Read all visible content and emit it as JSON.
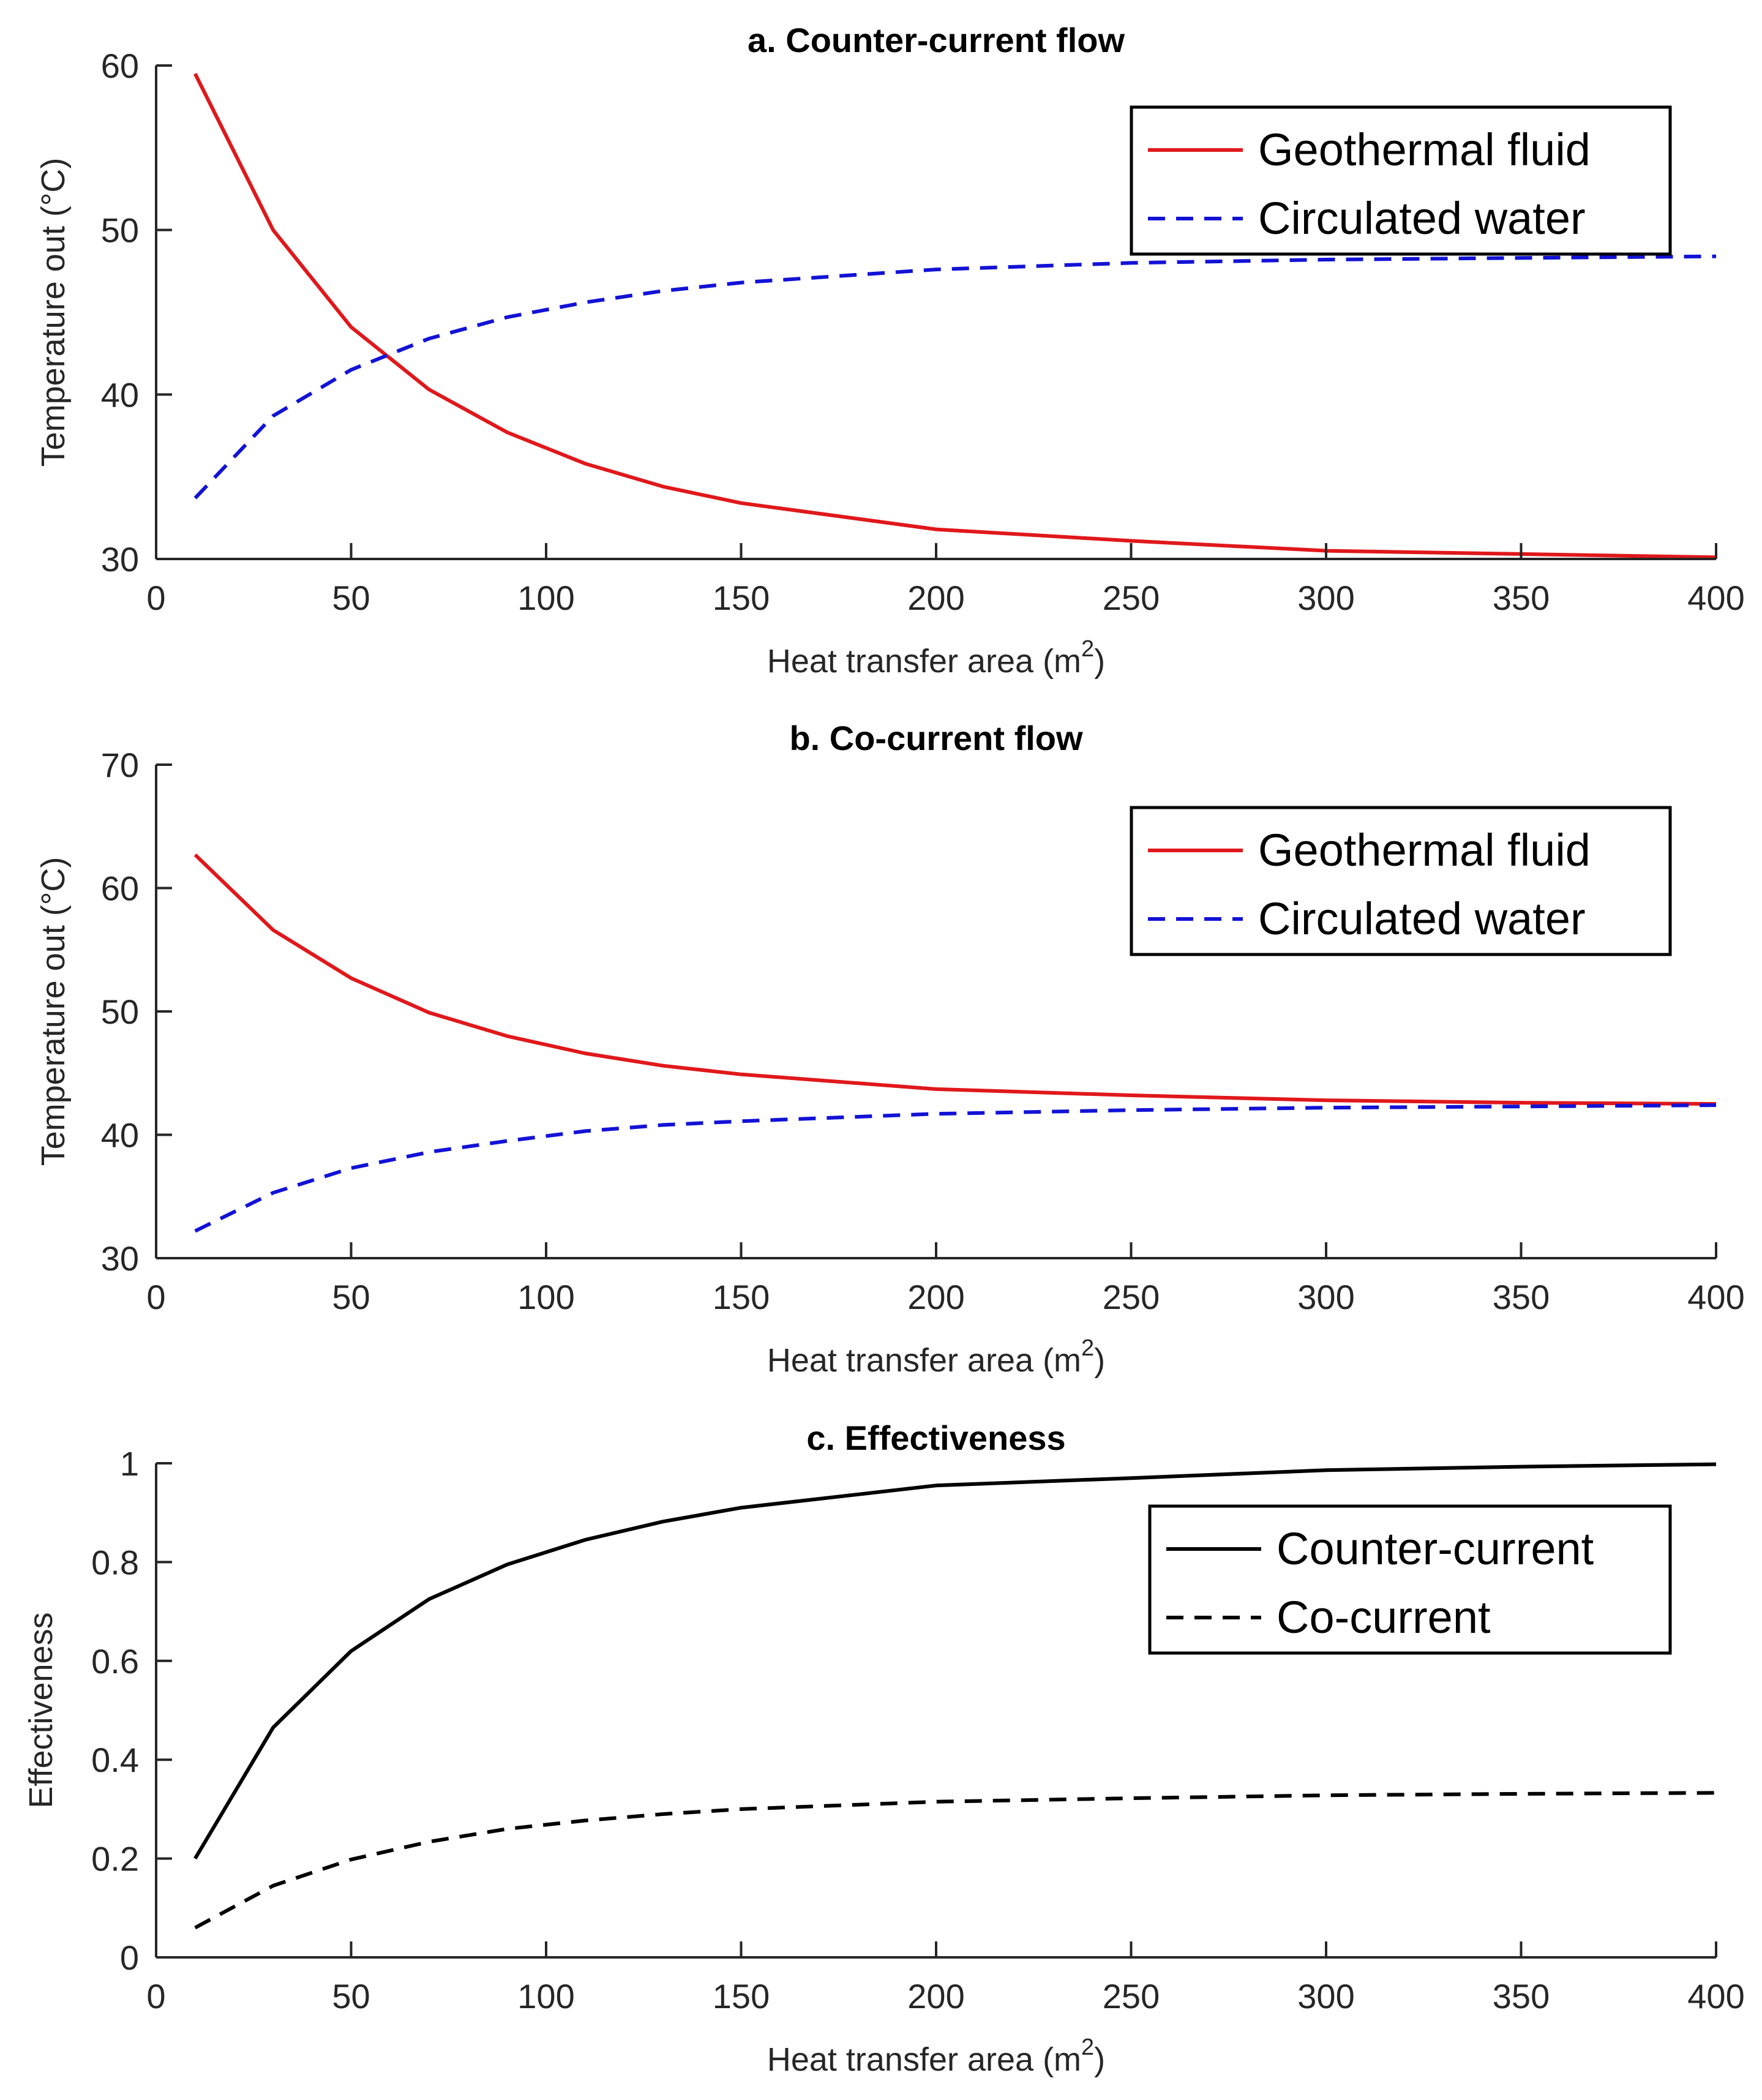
{
  "chart_data": [
    {
      "type": "line",
      "title": "a. Counter-current flow",
      "xlabel": "Heat transfer area (m",
      "xlabel_superscript": "2",
      "xlabel_suffix": ")",
      "ylabel": "Temperature out (°C)",
      "xlim": [
        0,
        400
      ],
      "ylim": [
        30,
        60
      ],
      "xticks": [
        0,
        50,
        100,
        150,
        200,
        250,
        300,
        350,
        400
      ],
      "yticks": [
        30,
        40,
        50,
        60
      ],
      "legend_position": "top-right",
      "series": [
        {
          "name": "Geothermal fluid",
          "color": "#e0181b",
          "style": "solid",
          "x": [
            10,
            30,
            50,
            70,
            90,
            110,
            130,
            150,
            200,
            250,
            300,
            350,
            400
          ],
          "y": [
            59.5,
            50.0,
            44.1,
            40.3,
            37.7,
            35.8,
            34.4,
            33.4,
            31.8,
            31.1,
            30.5,
            30.3,
            30.1
          ]
        },
        {
          "name": "Circulated water",
          "color": "#1212d6",
          "style": "dashed",
          "x": [
            10,
            30,
            50,
            70,
            90,
            110,
            130,
            150,
            200,
            250,
            300,
            350,
            400
          ],
          "y": [
            33.7,
            38.7,
            41.5,
            43.4,
            44.7,
            45.6,
            46.3,
            46.8,
            47.6,
            48.0,
            48.2,
            48.3,
            48.4
          ]
        }
      ]
    },
    {
      "type": "line",
      "title": "b. Co-current flow",
      "xlabel": "Heat transfer area (m",
      "xlabel_superscript": "2",
      "xlabel_suffix": ")",
      "ylabel": "Temperature out (°C)",
      "xlim": [
        0,
        400
      ],
      "ylim": [
        30,
        70
      ],
      "xticks": [
        0,
        50,
        100,
        150,
        200,
        250,
        300,
        350,
        400
      ],
      "yticks": [
        30,
        40,
        50,
        60,
        70
      ],
      "legend_position": "top-right",
      "series": [
        {
          "name": "Geothermal fluid",
          "color": "#e0181b",
          "style": "solid",
          "x": [
            10,
            30,
            50,
            70,
            90,
            110,
            130,
            150,
            200,
            250,
            300,
            350,
            400
          ],
          "y": [
            62.7,
            56.6,
            52.7,
            49.9,
            48.0,
            46.6,
            45.6,
            44.9,
            43.7,
            43.2,
            42.8,
            42.6,
            42.5
          ]
        },
        {
          "name": "Circulated water",
          "color": "#1212d6",
          "style": "dashed",
          "x": [
            10,
            30,
            50,
            70,
            90,
            110,
            130,
            150,
            200,
            250,
            300,
            350,
            400
          ],
          "y": [
            32.2,
            35.3,
            37.3,
            38.6,
            39.5,
            40.3,
            40.8,
            41.1,
            41.7,
            42.0,
            42.2,
            42.3,
            42.4
          ]
        }
      ]
    },
    {
      "type": "line",
      "title": "c. Effectiveness",
      "xlabel": "Heat transfer area (m",
      "xlabel_superscript": "2",
      "xlabel_suffix": ")",
      "ylabel": "Effectiveness",
      "xlim": [
        0,
        400
      ],
      "ylim": [
        0,
        1
      ],
      "xticks": [
        0,
        50,
        100,
        150,
        200,
        250,
        300,
        350,
        400
      ],
      "yticks": [
        0,
        0.2,
        0.4,
        0.6,
        0.8,
        1
      ],
      "legend_position": "center-right",
      "series": [
        {
          "name": "Counter-current",
          "color": "#000000",
          "style": "solid",
          "x": [
            10,
            30,
            50,
            70,
            90,
            110,
            130,
            150,
            200,
            250,
            300,
            350,
            400
          ],
          "y": [
            0.2,
            0.465,
            0.62,
            0.725,
            0.795,
            0.845,
            0.882,
            0.91,
            0.955,
            0.97,
            0.986,
            0.993,
            0.998
          ]
        },
        {
          "name": "Co-current",
          "color": "#000000",
          "style": "dashed",
          "x": [
            10,
            30,
            50,
            70,
            90,
            110,
            130,
            150,
            200,
            250,
            300,
            350,
            400
          ],
          "y": [
            0.06,
            0.145,
            0.198,
            0.234,
            0.26,
            0.277,
            0.29,
            0.3,
            0.315,
            0.322,
            0.328,
            0.331,
            0.333
          ]
        }
      ]
    }
  ]
}
